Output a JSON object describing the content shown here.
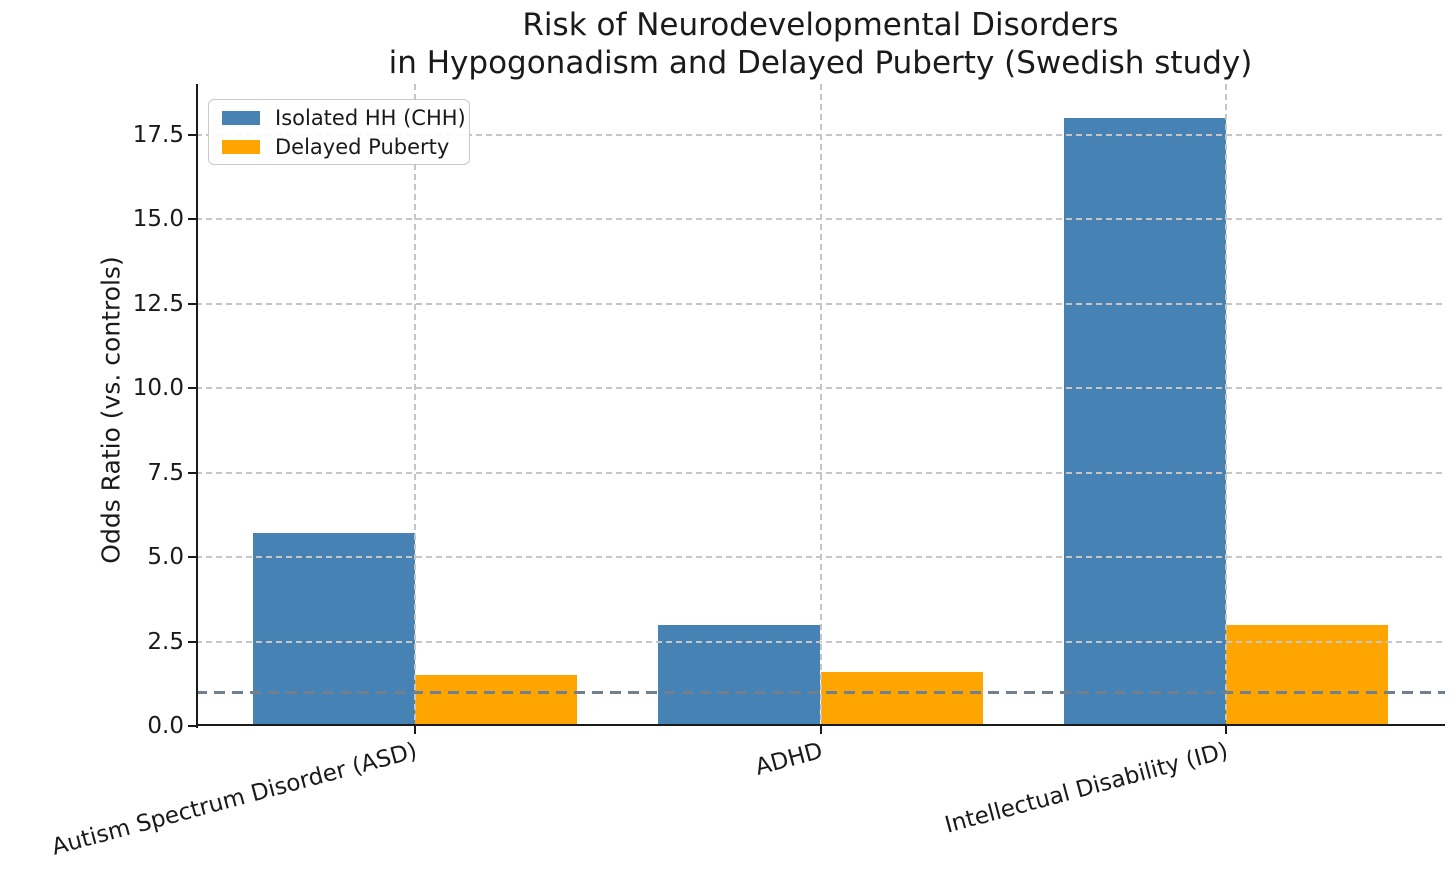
{
  "chart_data": {
    "type": "bar",
    "title": "Risk of Neurodevelopmental Disorders\nin Hypogonadism and Delayed Puberty (Swedish study)",
    "ylabel": "Odds Ratio (vs. controls)",
    "xlabel": "",
    "categories": [
      "Autism Spectrum Disorder (ASD)",
      "ADHD",
      "Intellectual Disability (ID)"
    ],
    "series": [
      {
        "name": "Isolated HH (CHH)",
        "color": "#4682B4",
        "values": [
          5.7,
          3.0,
          18.0
        ]
      },
      {
        "name": "Delayed Puberty",
        "color": "#FFA500",
        "values": [
          1.5,
          1.6,
          3.0
        ]
      }
    ],
    "yticks": [
      0.0,
      2.5,
      5.0,
      7.5,
      10.0,
      12.5,
      15.0,
      17.5
    ],
    "ytick_labels": [
      "0.0",
      "2.5",
      "5.0",
      "7.5",
      "10.0",
      "12.5",
      "15.0",
      "17.5"
    ],
    "ylim": [
      0,
      19
    ],
    "reference_line": {
      "value": 1.0,
      "color": "#708090",
      "style": "dashed"
    },
    "grid": true,
    "grid_color": "#c6c6c6",
    "grid_style": "dashed",
    "legend_position": "upper left",
    "xtick_rotation_deg": 15,
    "bar_colors_note": {
      "blue": "#4682B4",
      "orange": "#FFA500"
    }
  }
}
